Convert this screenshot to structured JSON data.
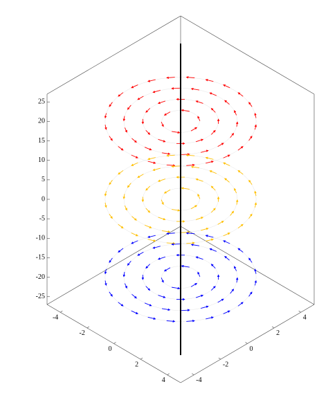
{
  "chart_data": {
    "type": "quiver3d",
    "xlim": [
      -5,
      5
    ],
    "ylim": [
      -5,
      5
    ],
    "zlim": [
      -27,
      27
    ],
    "xticks": [
      -4,
      -2,
      0,
      2,
      4
    ],
    "yticks": [
      -4,
      -2,
      0,
      2,
      4
    ],
    "zticks": [
      -25,
      -20,
      -15,
      -10,
      -5,
      0,
      5,
      10,
      15,
      20,
      25
    ],
    "series": [
      {
        "color": "#ff0000",
        "z": 20,
        "radii": [
          1,
          2,
          3,
          4
        ]
      },
      {
        "color": "#ffbf00",
        "z": 0,
        "radii": [
          1,
          2,
          3,
          4
        ]
      },
      {
        "color": "#0000ff",
        "z": -20,
        "radii": [
          1,
          2,
          3,
          4
        ]
      }
    ],
    "line": {
      "color": "#000000",
      "z": [
        -40,
        40
      ]
    }
  }
}
